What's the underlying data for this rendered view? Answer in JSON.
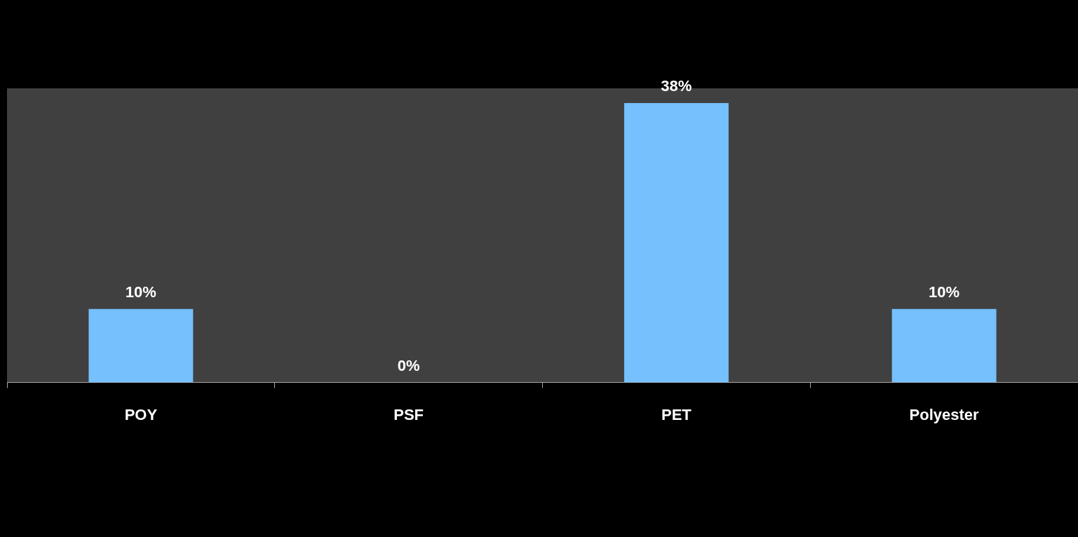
{
  "chart_data": {
    "type": "bar",
    "categories": [
      "POY",
      "PSF",
      "PET",
      "Polyester"
    ],
    "values": [
      10,
      0,
      38,
      10
    ],
    "color": "#75c0fd",
    "value_labels": [
      "10%",
      "0%",
      "38%",
      "10%"
    ],
    "grid": false,
    "legend": false
  }
}
